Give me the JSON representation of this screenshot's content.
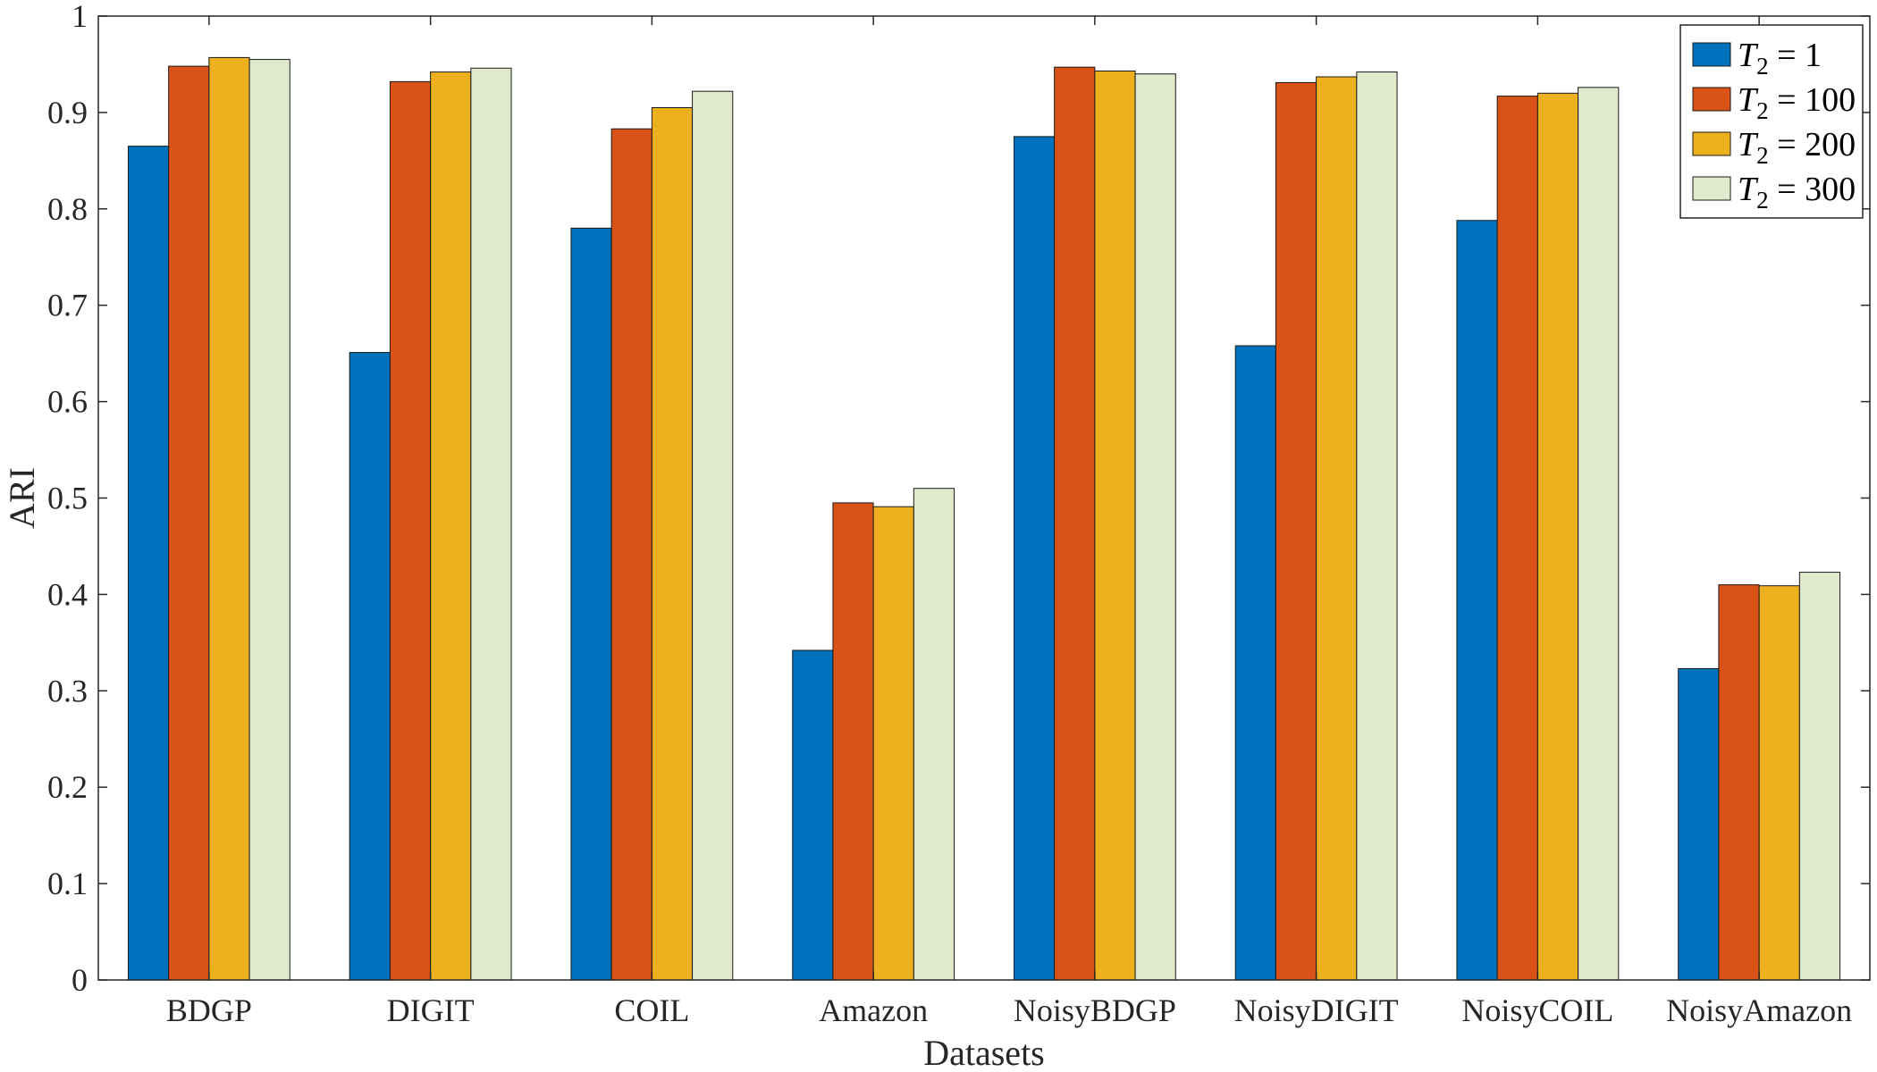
{
  "chart_data": {
    "type": "bar",
    "title": "",
    "xlabel": "Datasets",
    "ylabel": "ARI",
    "ylim": [
      0,
      1
    ],
    "yticks": [
      "0",
      "0.1",
      "0.2",
      "0.3",
      "0.4",
      "0.5",
      "0.6",
      "0.7",
      "0.8",
      "0.9",
      "1"
    ],
    "categories": [
      "BDGP",
      "DIGIT",
      "COIL",
      "Amazon",
      "NoisyBDGP",
      "NoisyDIGIT",
      "NoisyCOIL",
      "NoisyAmazon"
    ],
    "series": [
      {
        "name": "T2 = 1",
        "legend_symbol": "T",
        "legend_subscript": "2",
        "legend_rest": " = 1",
        "color": "#0072BD",
        "values": [
          0.865,
          0.651,
          0.78,
          0.342,
          0.875,
          0.658,
          0.788,
          0.323
        ]
      },
      {
        "name": "T2 = 100",
        "legend_symbol": "T",
        "legend_subscript": "2",
        "legend_rest": " = 100",
        "color": "#D95319",
        "values": [
          0.948,
          0.932,
          0.883,
          0.495,
          0.947,
          0.931,
          0.917,
          0.41
        ]
      },
      {
        "name": "T2 = 200",
        "legend_symbol": "T",
        "legend_subscript": "2",
        "legend_rest": " = 200",
        "color": "#EDB120",
        "values": [
          0.957,
          0.942,
          0.905,
          0.491,
          0.943,
          0.937,
          0.92,
          0.409
        ]
      },
      {
        "name": "T2 = 300",
        "legend_symbol": "T",
        "legend_subscript": "2",
        "legend_rest": " = 300",
        "color": "#DFEACC",
        "values": [
          0.955,
          0.946,
          0.922,
          0.51,
          0.94,
          0.942,
          0.926,
          0.423
        ]
      }
    ],
    "legend_position": "top-right",
    "grid": false
  }
}
